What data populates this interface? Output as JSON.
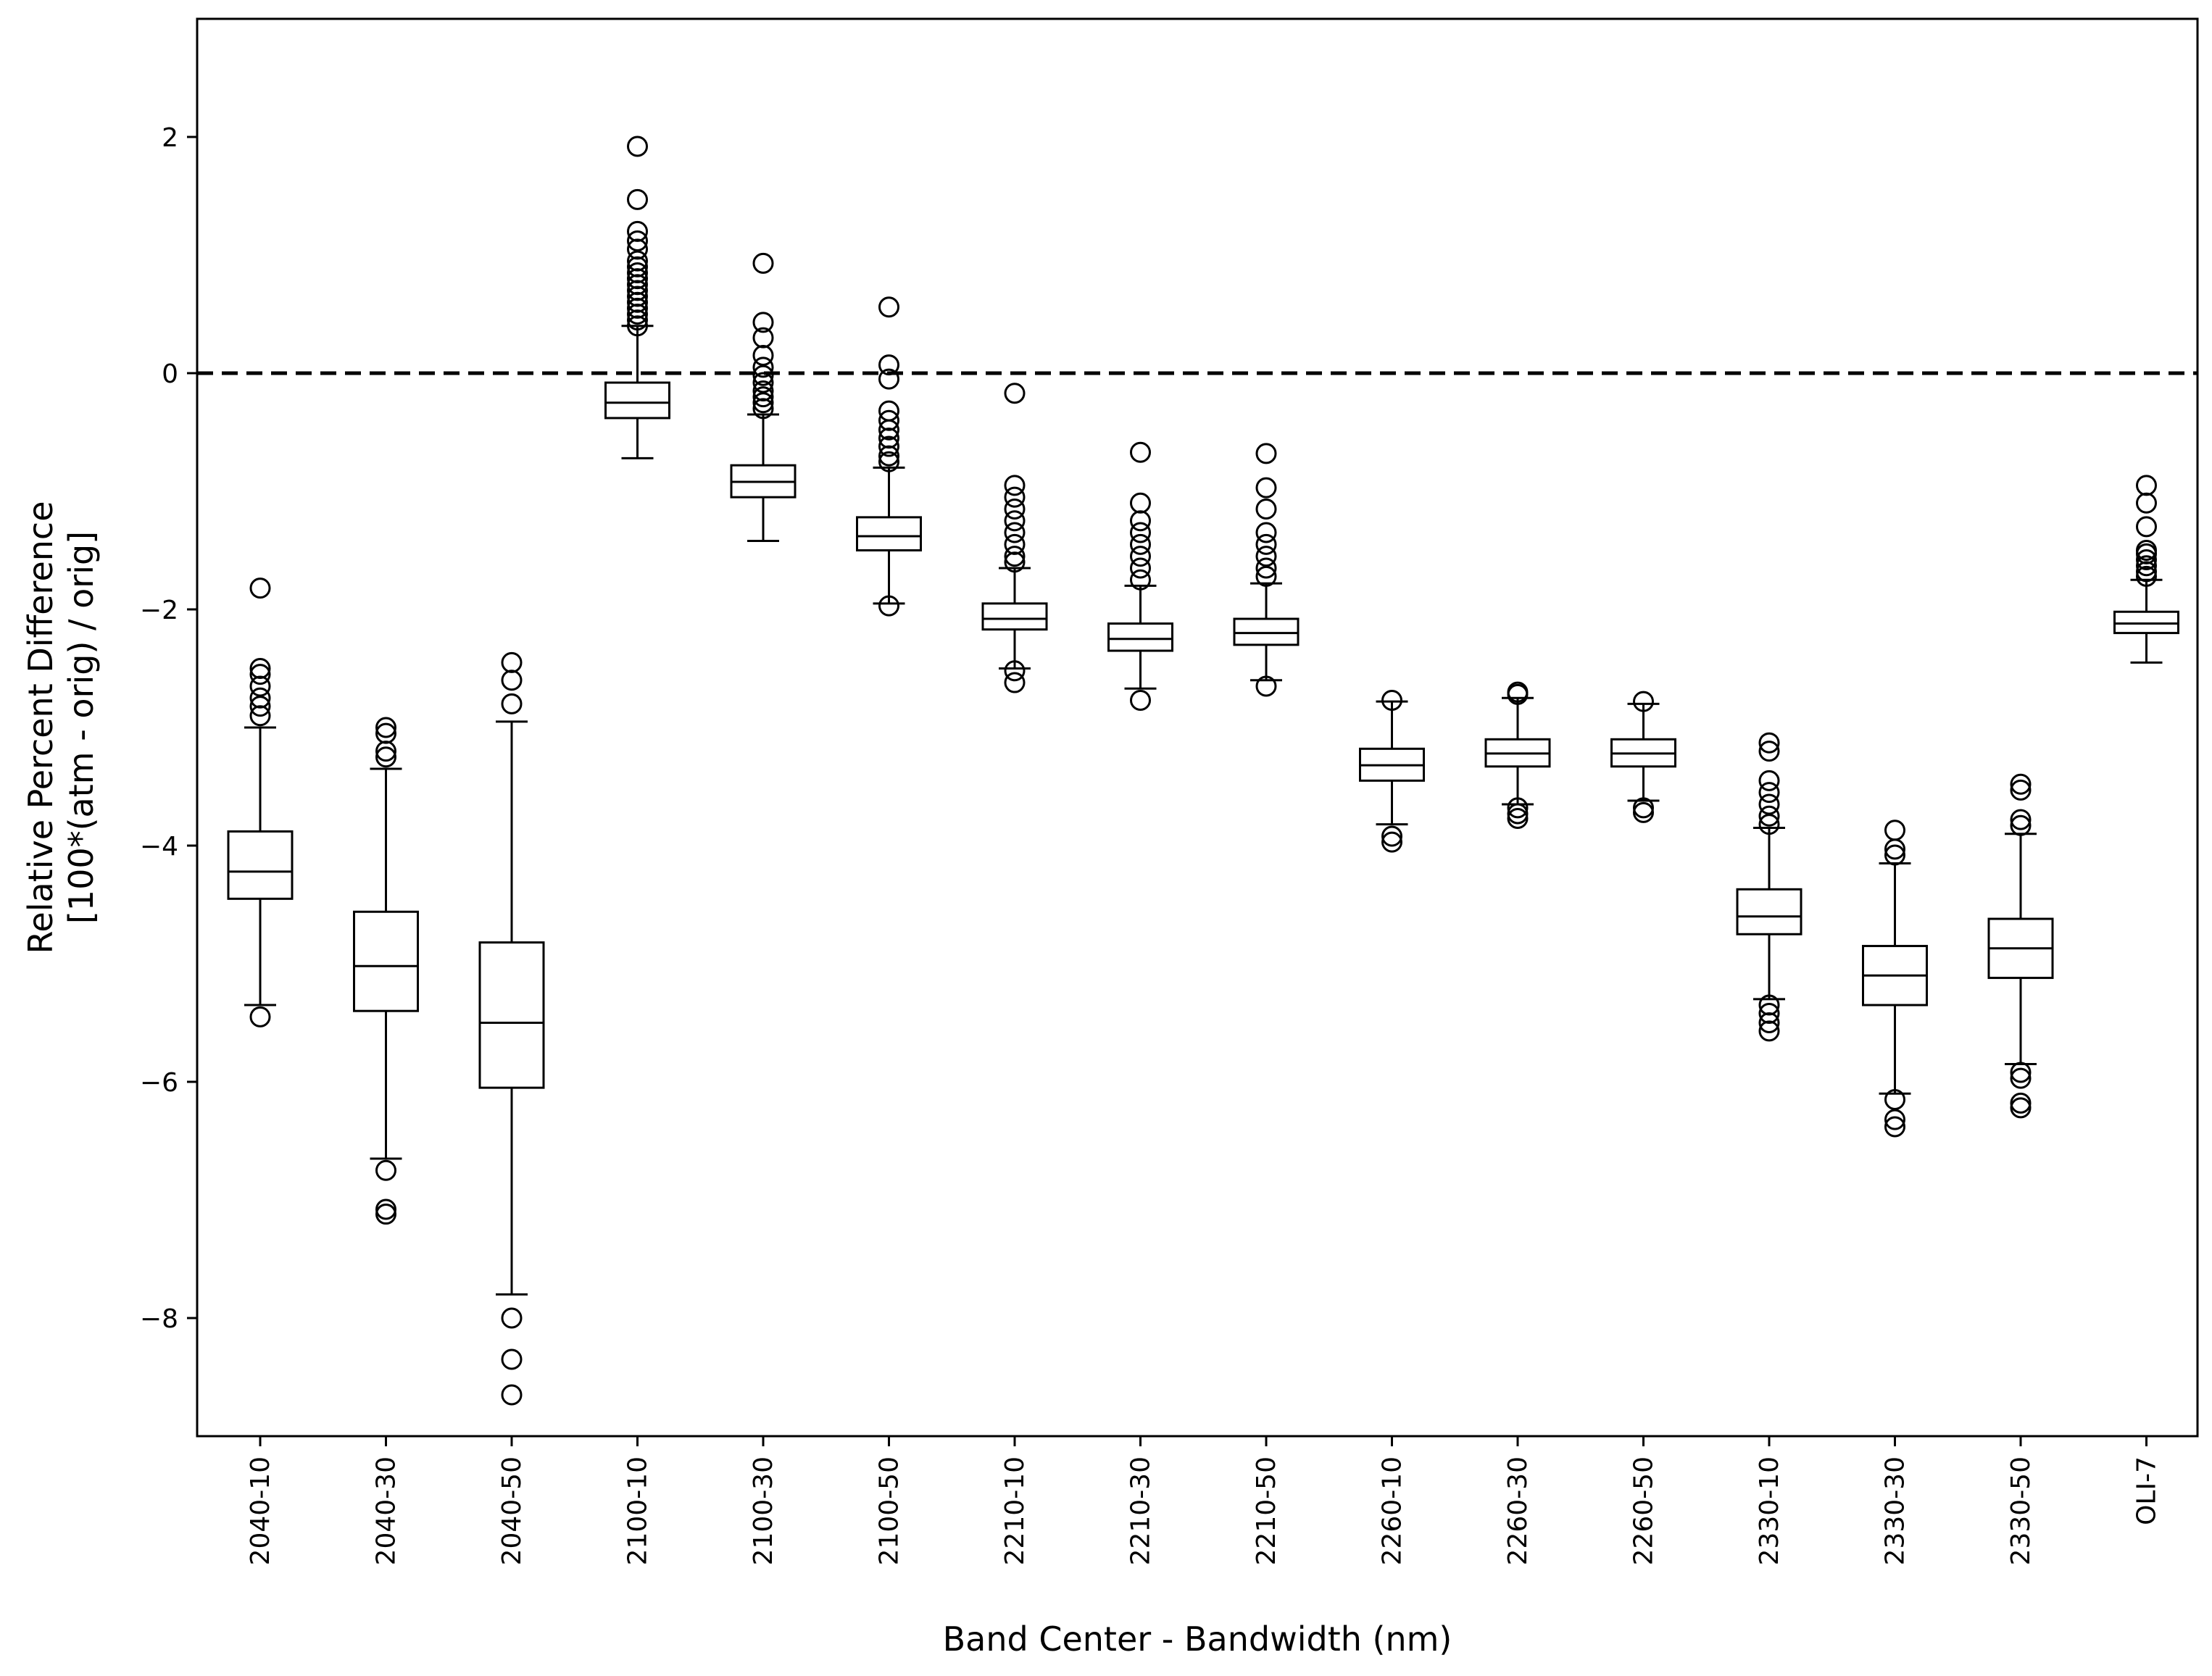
{
  "chart_data": {
    "type": "box",
    "title": "",
    "xlabel": "Band Center - Bandwidth (nm)",
    "ylabel_lines": [
      "Relative Percent Difference",
      "[100*(atm - orig) / orig]"
    ],
    "ylim": [
      -9.0,
      3.0
    ],
    "yticks": [
      2,
      0,
      -2,
      -4,
      -6,
      -8
    ],
    "ytick_labels": [
      "2",
      "0",
      "−2",
      "−4",
      "−6",
      "−8"
    ],
    "reference_line": {
      "y": 0,
      "style": "dashed"
    },
    "categories": [
      "2040-10",
      "2040-30",
      "2040-50",
      "2100-10",
      "2100-30",
      "2100-50",
      "2210-10",
      "2210-30",
      "2210-50",
      "2260-10",
      "2260-30",
      "2260-50",
      "2330-10",
      "2330-30",
      "2330-50",
      "OLI-7"
    ],
    "boxes": [
      {
        "whisker_low": -5.35,
        "q1": -4.45,
        "median": -4.22,
        "q3": -3.88,
        "whisker_high": -3.0,
        "outliers": [
          -5.45,
          -2.9,
          -2.82,
          -2.75,
          -2.65,
          -2.55,
          -2.5,
          -1.82
        ]
      },
      {
        "whisker_low": -6.65,
        "q1": -5.4,
        "median": -5.02,
        "q3": -4.56,
        "whisker_high": -3.35,
        "outliers": [
          -7.12,
          -7.08,
          -6.75,
          -3.25,
          -3.2,
          -3.05,
          -3.0
        ]
      },
      {
        "whisker_low": -7.8,
        "q1": -6.05,
        "median": -5.5,
        "q3": -4.82,
        "whisker_high": -2.95,
        "outliers": [
          -8.65,
          -8.35,
          -8.0,
          -2.8,
          -2.6,
          -2.45
        ]
      },
      {
        "whisker_low": -0.72,
        "q1": -0.38,
        "median": -0.25,
        "q3": -0.08,
        "whisker_high": 0.4,
        "outliers": [
          0.4,
          0.45,
          0.5,
          0.55,
          0.6,
          0.65,
          0.7,
          0.75,
          0.8,
          0.85,
          0.9,
          0.95,
          1.05,
          1.12,
          1.2,
          1.47,
          1.92
        ]
      },
      {
        "whisker_low": -1.42,
        "q1": -1.05,
        "median": -0.92,
        "q3": -0.78,
        "whisker_high": -0.35,
        "outliers": [
          -0.3,
          -0.25,
          -0.2,
          -0.15,
          -0.08,
          -0.02,
          0.05,
          0.15,
          0.3,
          0.43,
          0.93
        ]
      },
      {
        "whisker_low": -1.95,
        "q1": -1.5,
        "median": -1.38,
        "q3": -1.22,
        "whisker_high": -0.8,
        "outliers": [
          -1.97,
          -0.75,
          -0.7,
          -0.62,
          -0.55,
          -0.48,
          -0.4,
          -0.32,
          -0.05,
          0.07,
          0.56
        ]
      },
      {
        "whisker_low": -2.5,
        "q1": -2.17,
        "median": -2.08,
        "q3": -1.95,
        "whisker_high": -1.65,
        "outliers": [
          -2.62,
          -2.52,
          -1.6,
          -1.55,
          -1.45,
          -1.35,
          -1.25,
          -1.15,
          -1.05,
          -0.95,
          -0.17
        ]
      },
      {
        "whisker_low": -2.67,
        "q1": -2.35,
        "median": -2.25,
        "q3": -2.12,
        "whisker_high": -1.8,
        "outliers": [
          -2.77,
          -1.75,
          -1.65,
          -1.55,
          -1.45,
          -1.35,
          -1.25,
          -1.1,
          -0.67
        ]
      },
      {
        "whisker_low": -2.6,
        "q1": -2.3,
        "median": -2.2,
        "q3": -2.08,
        "whisker_high": -1.78,
        "outliers": [
          -2.65,
          -1.72,
          -1.65,
          -1.55,
          -1.45,
          -1.35,
          -1.15,
          -0.97,
          -0.68
        ]
      },
      {
        "whisker_low": -3.82,
        "q1": -3.45,
        "median": -3.32,
        "q3": -3.18,
        "whisker_high": -2.78,
        "outliers": [
          -3.97,
          -3.92,
          -2.77
        ]
      },
      {
        "whisker_low": -3.65,
        "q1": -3.33,
        "median": -3.22,
        "q3": -3.1,
        "whisker_high": -2.75,
        "outliers": [
          -3.77,
          -3.73,
          -3.68,
          -2.72,
          -2.7
        ]
      },
      {
        "whisker_low": -3.62,
        "q1": -3.33,
        "median": -3.22,
        "q3": -3.1,
        "whisker_high": -2.8,
        "outliers": [
          -3.72,
          -3.68,
          -2.78
        ]
      },
      {
        "whisker_low": -5.3,
        "q1": -4.75,
        "median": -4.6,
        "q3": -4.37,
        "whisker_high": -3.85,
        "outliers": [
          -5.57,
          -5.5,
          -5.42,
          -5.35,
          -3.82,
          -3.75,
          -3.65,
          -3.55,
          -3.45,
          -3.2,
          -3.13
        ]
      },
      {
        "whisker_low": -6.1,
        "q1": -5.35,
        "median": -5.1,
        "q3": -4.85,
        "whisker_high": -4.15,
        "outliers": [
          -6.38,
          -6.32,
          -6.15,
          -4.08,
          -4.03,
          -3.87
        ]
      },
      {
        "whisker_low": -5.85,
        "q1": -5.12,
        "median": -4.87,
        "q3": -4.62,
        "whisker_high": -3.9,
        "outliers": [
          -6.22,
          -6.18,
          -5.97,
          -5.92,
          -3.83,
          -3.78,
          -3.53,
          -3.48
        ]
      },
      {
        "whisker_low": -2.45,
        "q1": -2.2,
        "median": -2.12,
        "q3": -2.02,
        "whisker_high": -1.75,
        "outliers": [
          -1.72,
          -1.68,
          -1.63,
          -1.58,
          -1.53,
          -1.5,
          -1.3,
          -1.1,
          -0.95
        ]
      }
    ]
  }
}
